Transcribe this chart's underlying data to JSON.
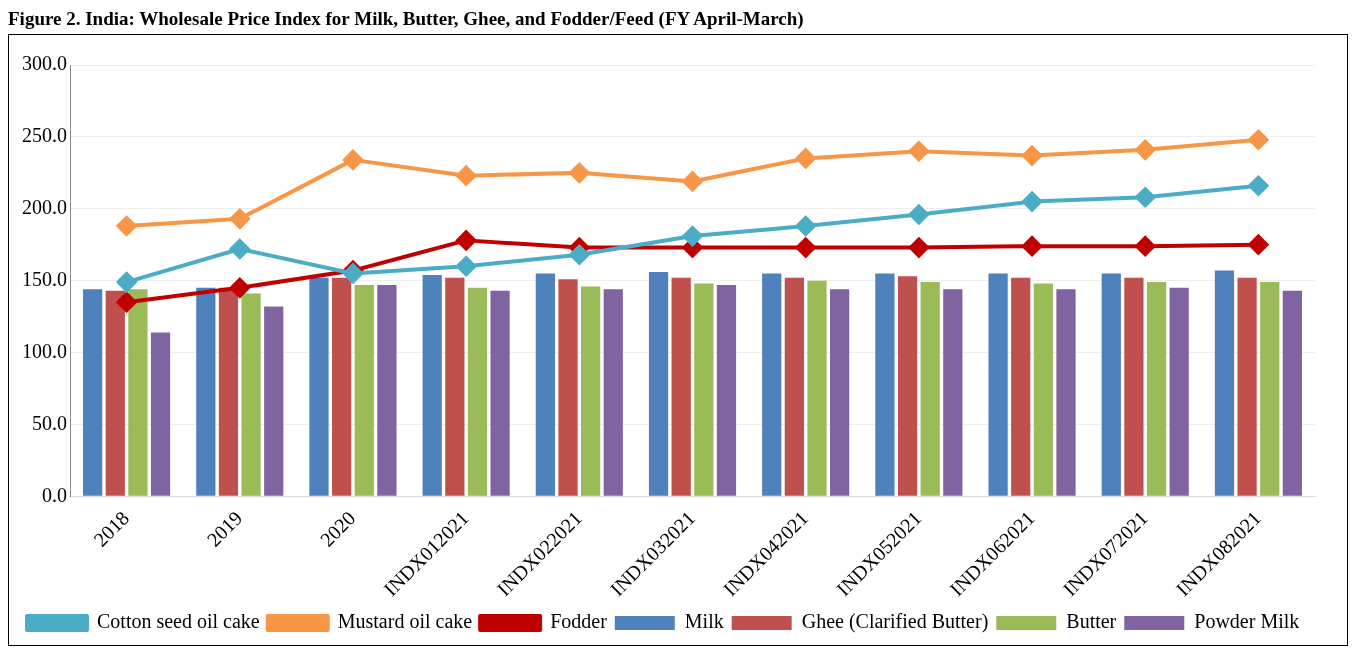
{
  "chart_data": {
    "type": "bar",
    "title": "Figure 2. India: Wholesale Price Index for Milk, Butter, Ghee, and Fodder/Feed (FY April-March)",
    "categories": [
      "2018",
      "2019",
      "2020",
      "INDX012021",
      "INDX022021",
      "INDX032021",
      "INDX042021",
      "INDX052021",
      "INDX062021",
      "INDX072021",
      "INDX082021"
    ],
    "series": [
      {
        "name": "Milk",
        "color": "#4f81bd",
        "values": [
          144,
          145,
          152,
          154,
          155,
          156,
          155,
          155,
          155,
          155,
          157
        ]
      },
      {
        "name": "Ghee (Clarified Butter)",
        "color": "#c0504d",
        "values": [
          143,
          145,
          152,
          152,
          151,
          152,
          152,
          153,
          152,
          152,
          152
        ]
      },
      {
        "name": "Butter",
        "color": "#9bbb59",
        "values": [
          144,
          141,
          147,
          145,
          146,
          148,
          150,
          149,
          148,
          149,
          149
        ]
      },
      {
        "name": "Powder Milk",
        "color": "#8064a2",
        "values": [
          114,
          132,
          147,
          143,
          144,
          147,
          144,
          144,
          144,
          145,
          143
        ]
      },
      {
        "name": "Cotton seed oil cake",
        "color": "#4bacc6",
        "type": "line",
        "values": [
          149,
          172,
          155,
          160,
          168,
          181,
          188,
          196,
          205,
          208,
          216
        ]
      },
      {
        "name": "Mustard oil cake",
        "color": "#f79646",
        "type": "line",
        "values": [
          188,
          193,
          234,
          223,
          225,
          219,
          235,
          240,
          237,
          241,
          248
        ]
      },
      {
        "name": "Fodder",
        "color": "#c00000",
        "type": "line",
        "values": [
          135,
          145,
          157,
          178,
          173,
          173,
          173,
          173,
          174,
          174,
          175
        ]
      }
    ],
    "ylim": [
      0,
      300
    ],
    "yticks": [
      {
        "value": 0,
        "label": "0.0"
      },
      {
        "value": 50,
        "label": "50.0"
      },
      {
        "value": 100,
        "label": "100.0"
      },
      {
        "value": 150,
        "label": "150.0"
      },
      {
        "value": 200,
        "label": "200.0"
      },
      {
        "value": 250,
        "label": "250.0"
      },
      {
        "value": 300,
        "label": "300.0"
      }
    ],
    "grid": "y",
    "legend": "bottom",
    "marker": "diamond",
    "line_style": "solid"
  }
}
